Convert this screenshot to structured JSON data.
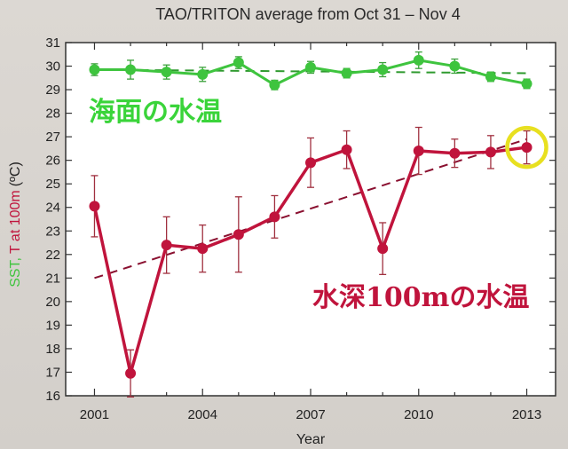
{
  "chart_data": {
    "type": "line",
    "title": "TAO/TRITON average from Oct 31 – Nov 4",
    "xlabel": "Year",
    "ylabel_parts": [
      "SST,",
      "T at 100m",
      "(ºC)"
    ],
    "xlim": [
      2000.2,
      2013.8
    ],
    "ylim": [
      16,
      31
    ],
    "xticks": [
      2001,
      2004,
      2007,
      2010,
      2013
    ],
    "yticks": [
      16,
      17,
      18,
      19,
      20,
      21,
      22,
      23,
      24,
      25,
      26,
      27,
      28,
      29,
      30,
      31
    ],
    "x": [
      2001,
      2002,
      2003,
      2004,
      2005,
      2006,
      2007,
      2008,
      2009,
      2010,
      2011,
      2012,
      2013
    ],
    "series": [
      {
        "name": "海面の水温",
        "color": "#3ec43e",
        "values": [
          29.85,
          29.85,
          29.75,
          29.65,
          30.15,
          29.2,
          29.95,
          29.7,
          29.85,
          30.25,
          30.0,
          29.55,
          29.25
        ],
        "errors": [
          0.25,
          0.4,
          0.3,
          0.3,
          0.25,
          0.2,
          0.25,
          0.2,
          0.3,
          0.35,
          0.3,
          0.2,
          0.2
        ],
        "trend": [
          29.85,
          29.7
        ]
      },
      {
        "name": "水深100mの水温",
        "color": "#c0143c",
        "values": [
          24.05,
          16.95,
          22.4,
          22.25,
          22.85,
          23.6,
          25.9,
          26.45,
          22.25,
          26.4,
          26.3,
          26.35,
          26.55
        ],
        "errors": [
          1.3,
          1.0,
          1.2,
          1.0,
          1.6,
          0.9,
          1.05,
          0.8,
          1.1,
          1.0,
          0.6,
          0.7,
          0.7
        ],
        "trend": [
          21.0,
          26.9
        ]
      }
    ],
    "highlight": {
      "x": 2013,
      "y": 26.55,
      "color": "#e8e020"
    },
    "legend_labels": {
      "sst": "海面の水温",
      "t100": "水深100mの水温"
    }
  }
}
